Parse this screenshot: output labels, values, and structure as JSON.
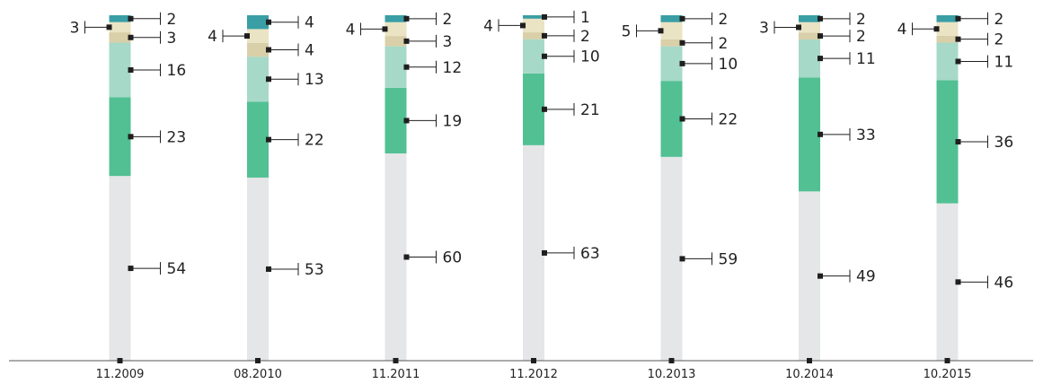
{
  "chart_data": {
    "type": "bar",
    "stacked": true,
    "orientation": "vertical",
    "title": "",
    "xlabel": "",
    "ylabel": "",
    "ylim": [
      0,
      100
    ],
    "grid": false,
    "legend": "none",
    "categories": [
      "11.2009",
      "08.2010",
      "11.2011",
      "11.2012",
      "10.2013",
      "10.2014",
      "10.2015"
    ],
    "series": [
      {
        "color": "#e5e6e8",
        "values": [
          54,
          53,
          60,
          63,
          59,
          49,
          46
        ]
      },
      {
        "color": "#52c093",
        "values": [
          23,
          22,
          19,
          21,
          22,
          33,
          36
        ]
      },
      {
        "color": "#a6d9c8",
        "values": [
          16,
          13,
          12,
          10,
          10,
          11,
          11
        ]
      },
      {
        "color": "#d9cfa8",
        "values": [
          3,
          4,
          3,
          2,
          2,
          2,
          2
        ]
      },
      {
        "color": "#eae3c4",
        "values": [
          3,
          4,
          4,
          4,
          5,
          3,
          4
        ]
      },
      {
        "color": "#3a9ea5",
        "values": [
          2,
          4,
          2,
          1,
          2,
          2,
          2
        ]
      }
    ],
    "label_sides": [
      "right",
      "right",
      "right",
      "right",
      "left",
      "right"
    ]
  }
}
